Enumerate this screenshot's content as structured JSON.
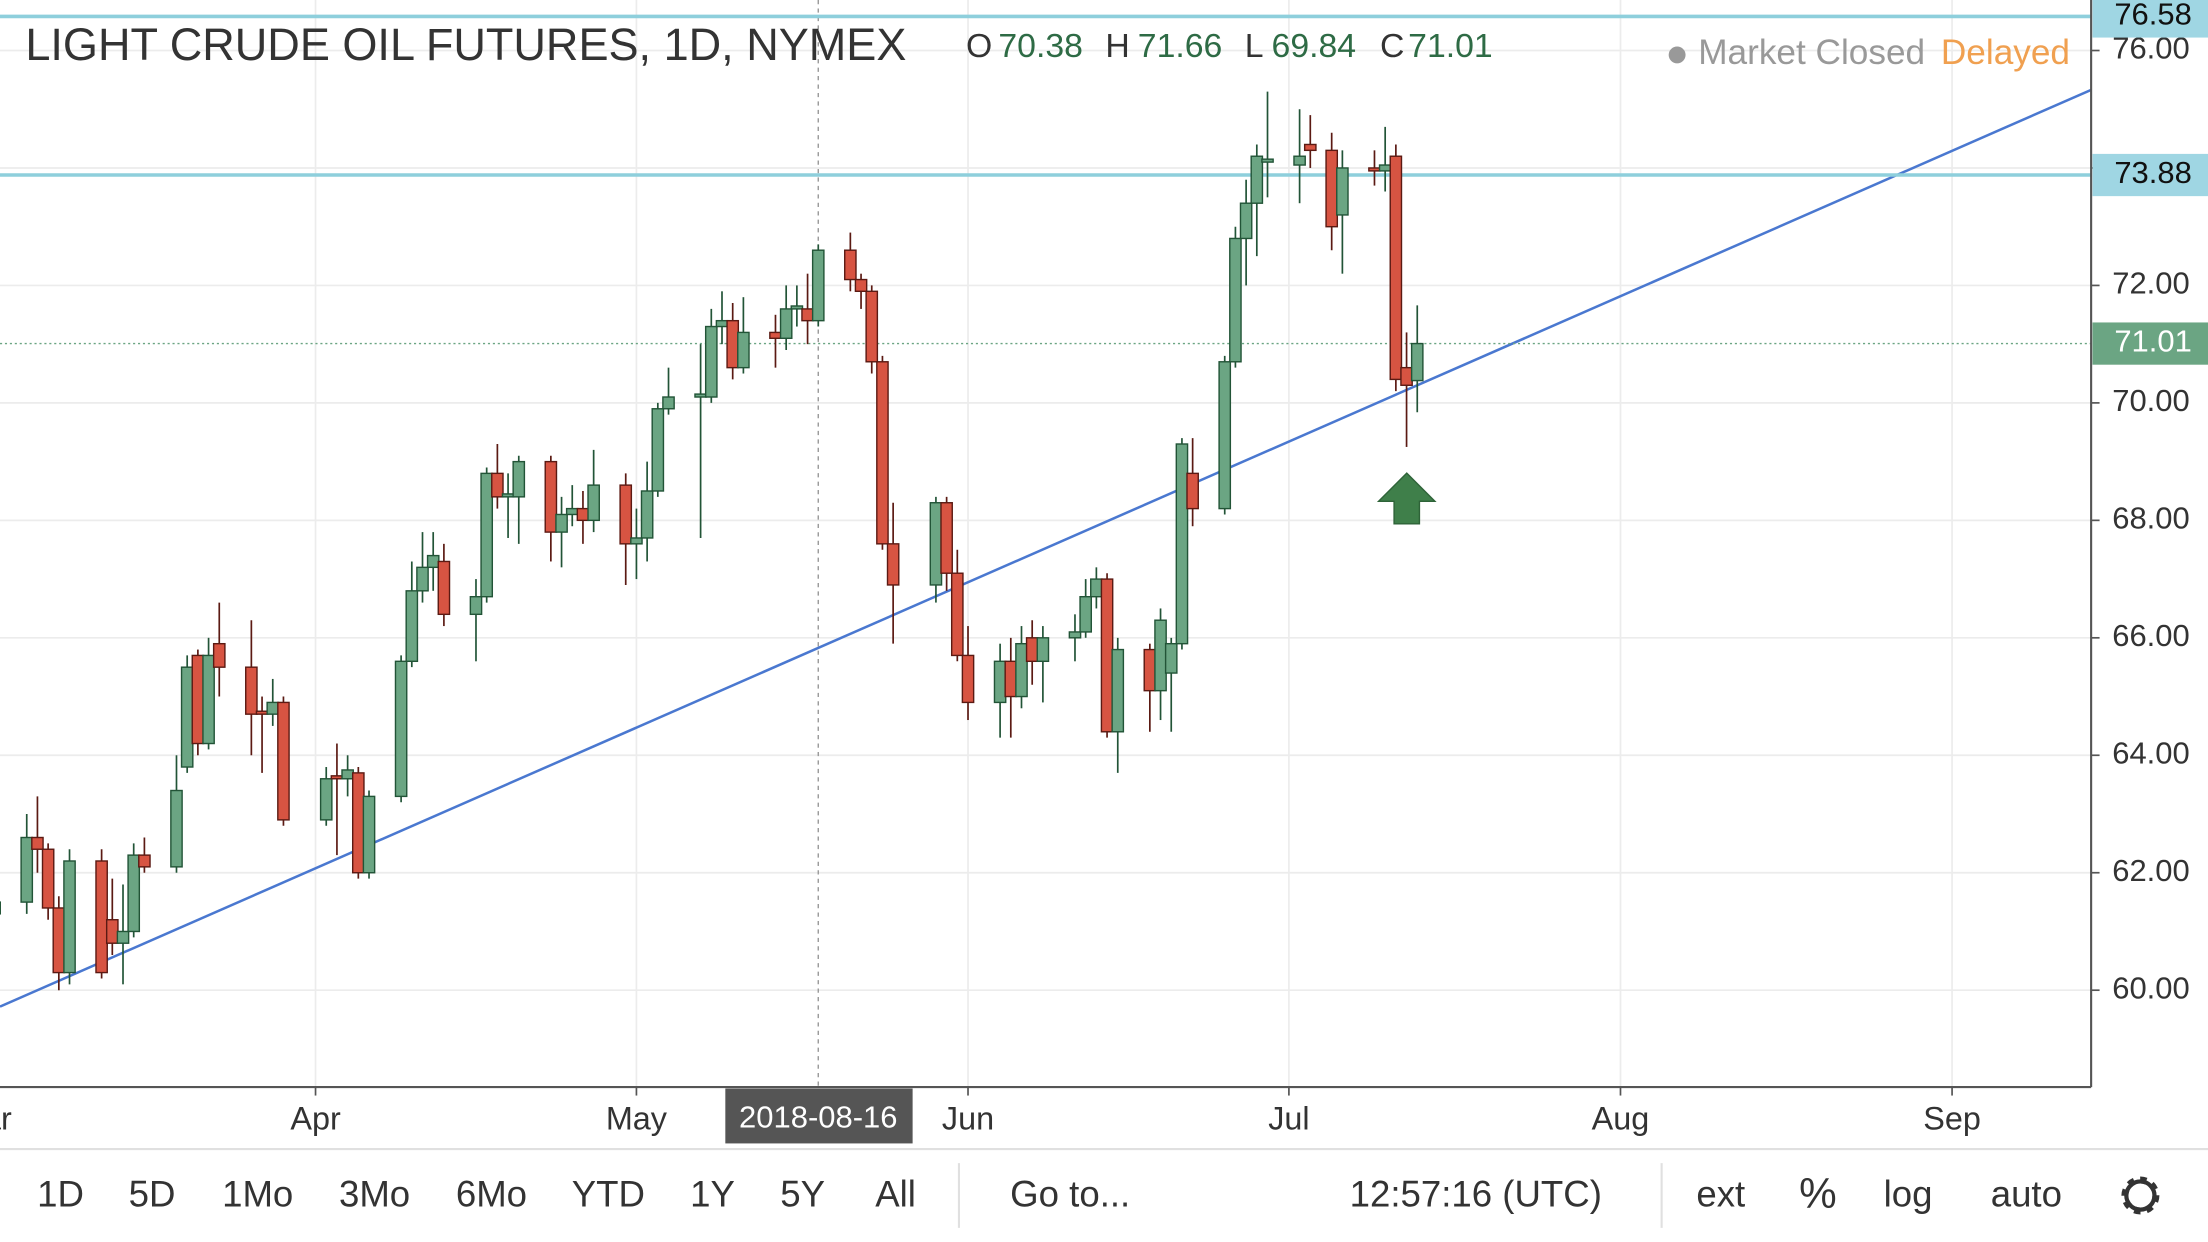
{
  "header": {
    "title": "LIGHT CRUDE OIL FUTURES, 1D, NYMEX",
    "ohlc_keys": [
      "O",
      "H",
      "L",
      "C"
    ],
    "status": "Market Closed",
    "delay": "Delayed"
  },
  "toolbar": {
    "ranges": [
      "1D",
      "5D",
      "1Mo",
      "3Mo",
      "6Mo",
      "YTD",
      "1Y",
      "5Y",
      "All"
    ],
    "goto": "Go to...",
    "clock": "12:57:16 (UTC)",
    "options": [
      "ext",
      "%",
      "log",
      "auto"
    ]
  },
  "chart_data": {
    "type": "candlestick",
    "up_color": "#6ba583",
    "down_color": "#d75442",
    "grid": true,
    "xlim": [
      61.5,
      257
    ],
    "ylim": [
      58.35,
      76.86
    ],
    "xticks": [
      {
        "value": 60,
        "label": "Mar"
      },
      {
        "value": 91,
        "label": "Apr"
      },
      {
        "value": 121,
        "label": "May"
      },
      {
        "value": 152,
        "label": "Jun"
      },
      {
        "value": 182,
        "label": "Jul"
      },
      {
        "value": 213,
        "label": "Aug"
      },
      {
        "value": 244,
        "label": "Sep"
      }
    ],
    "yticks": [
      {
        "value": 60,
        "label": "60.00"
      },
      {
        "value": 62,
        "label": "62.00"
      },
      {
        "value": 64,
        "label": "64.00"
      },
      {
        "value": 66,
        "label": "66.00"
      },
      {
        "value": 68,
        "label": "68.00"
      },
      {
        "value": 70,
        "label": "70.00"
      },
      {
        "value": 72,
        "label": "72.00"
      },
      {
        "value": 74,
        "label": "74.00"
      },
      {
        "value": 76,
        "label": "76.00"
      }
    ],
    "x": [
      61,
      64,
      65,
      66,
      67,
      68,
      71,
      72,
      73,
      74,
      75,
      78,
      79,
      80,
      81,
      82,
      85,
      86,
      87,
      88,
      92,
      93,
      94,
      95,
      96,
      99,
      100,
      101,
      102,
      103,
      106,
      107,
      108,
      109,
      110,
      113,
      114,
      115,
      116,
      117,
      120,
      121,
      122,
      123,
      124,
      127,
      128,
      129,
      130,
      131,
      134,
      135,
      136,
      137,
      138,
      141,
      142,
      143,
      144,
      145,
      149,
      150,
      151,
      152,
      155,
      156,
      157,
      158,
      159,
      162,
      163,
      164,
      165,
      166,
      169,
      170,
      171,
      172,
      173,
      176,
      177,
      178,
      179,
      180,
      183,
      184,
      186,
      187,
      190,
      191,
      192,
      193,
      194
    ],
    "open": [
      61.3,
      61.5,
      62.6,
      62.4,
      61.4,
      60.3,
      62.2,
      61.2,
      60.8,
      61.0,
      62.3,
      62.1,
      63.8,
      65.7,
      64.2,
      65.9,
      65.5,
      64.75,
      64.7,
      64.9,
      62.9,
      63.65,
      63.6,
      63.7,
      62.0,
      63.3,
      65.6,
      66.8,
      67.2,
      67.3,
      66.4,
      66.7,
      68.8,
      68.4,
      68.4,
      69.0,
      67.8,
      68.1,
      68.2,
      68.0,
      68.6,
      67.6,
      67.7,
      68.5,
      69.9,
      70.1,
      70.1,
      71.3,
      71.4,
      70.6,
      71.2,
      71.1,
      71.6,
      71.6,
      71.4,
      72.6,
      72.1,
      71.9,
      70.7,
      67.6,
      66.9,
      68.3,
      67.1,
      65.7,
      64.9,
      65.6,
      65.0,
      66.0,
      65.6,
      66.0,
      66.1,
      66.7,
      67.0,
      64.4,
      65.8,
      65.1,
      65.4,
      65.9,
      68.8,
      68.2,
      70.7,
      72.8,
      73.4,
      74.1,
      74.05,
      74.4,
      74.3,
      73.2,
      74.0,
      73.95,
      74.2,
      70.6,
      70.38
    ],
    "high": [
      62.0,
      63.0,
      63.3,
      62.5,
      61.6,
      62.4,
      62.4,
      61.9,
      61.8,
      62.5,
      62.6,
      64.0,
      65.7,
      65.8,
      66.0,
      66.6,
      66.3,
      65.0,
      65.3,
      65.0,
      63.8,
      64.2,
      64.0,
      63.8,
      63.4,
      65.7,
      67.3,
      67.8,
      67.8,
      67.6,
      67.0,
      68.9,
      69.3,
      68.8,
      69.1,
      69.1,
      68.4,
      68.6,
      68.5,
      69.2,
      68.8,
      68.2,
      69.0,
      70.0,
      70.6,
      71.0,
      71.6,
      71.9,
      71.7,
      71.8,
      71.5,
      72.0,
      72.0,
      72.2,
      72.7,
      72.9,
      72.2,
      72.0,
      70.8,
      68.3,
      68.4,
      68.4,
      67.5,
      66.2,
      65.9,
      66.0,
      66.2,
      66.3,
      66.2,
      66.4,
      67.0,
      67.2,
      67.1,
      66.0,
      65.9,
      66.5,
      66.0,
      69.4,
      69.4,
      70.8,
      73.0,
      73.8,
      74.4,
      75.3,
      75.0,
      74.9,
      74.6,
      74.3,
      74.3,
      74.7,
      74.4,
      71.2,
      71.66
    ],
    "low": [
      60.2,
      61.3,
      62.0,
      61.2,
      60.0,
      60.1,
      60.2,
      60.6,
      60.1,
      60.9,
      62.0,
      62.0,
      63.7,
      64.0,
      64.1,
      65.0,
      64.0,
      63.7,
      64.5,
      62.8,
      62.8,
      62.3,
      63.3,
      61.9,
      61.9,
      63.2,
      65.5,
      66.6,
      66.8,
      66.2,
      65.6,
      66.6,
      68.2,
      67.7,
      67.6,
      67.3,
      67.2,
      67.9,
      67.6,
      67.8,
      66.9,
      67.0,
      67.3,
      68.4,
      69.8,
      67.7,
      70.0,
      71.0,
      70.4,
      70.5,
      70.6,
      70.9,
      71.3,
      71.0,
      71.3,
      71.9,
      71.6,
      70.5,
      67.5,
      65.9,
      66.6,
      66.8,
      65.6,
      64.6,
      64.3,
      64.3,
      64.8,
      65.2,
      64.9,
      65.6,
      66.0,
      66.5,
      64.3,
      63.7,
      64.4,
      64.6,
      64.4,
      65.8,
      67.9,
      68.1,
      70.6,
      72.0,
      72.5,
      73.5,
      73.4,
      74.0,
      72.6,
      72.2,
      73.7,
      73.6,
      70.2,
      69.25,
      69.84
    ],
    "close": [
      61.5,
      62.6,
      62.4,
      61.4,
      60.3,
      62.2,
      60.3,
      60.8,
      61.0,
      62.3,
      62.1,
      63.4,
      65.5,
      64.2,
      65.7,
      65.5,
      64.7,
      64.7,
      64.9,
      62.9,
      63.6,
      63.6,
      63.75,
      62.0,
      63.3,
      65.6,
      66.8,
      67.2,
      67.4,
      66.4,
      66.7,
      68.8,
      68.4,
      68.45,
      69.0,
      67.8,
      68.1,
      68.2,
      68.0,
      68.6,
      67.6,
      67.7,
      68.5,
      69.9,
      70.1,
      70.15,
      71.3,
      71.4,
      70.6,
      71.2,
      71.1,
      71.6,
      71.65,
      71.4,
      72.6,
      72.1,
      71.9,
      70.7,
      67.6,
      66.9,
      68.3,
      67.1,
      65.7,
      64.9,
      65.6,
      65.0,
      65.9,
      65.6,
      66.0,
      66.1,
      66.7,
      67.0,
      64.4,
      65.8,
      65.1,
      66.3,
      65.9,
      69.3,
      68.2,
      70.7,
      72.8,
      73.4,
      74.2,
      74.15,
      74.2,
      74.3,
      73.0,
      74.0,
      73.95,
      74.05,
      70.4,
      70.3,
      71.01
    ],
    "hlines": [
      76.58,
      73.88
    ],
    "trendline": {
      "x": [
        61.5,
        257
      ],
      "y": [
        59.72,
        75.33
      ]
    },
    "crosshair": {
      "x": 138,
      "label": "2018-08-16"
    }
  }
}
